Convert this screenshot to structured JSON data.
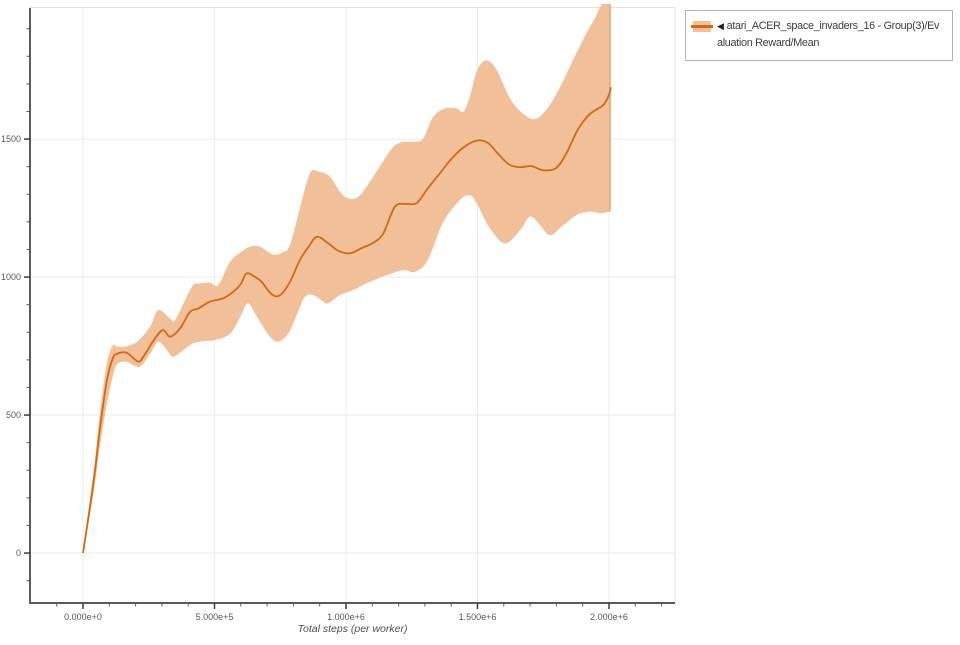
{
  "legend": {
    "collapse_icon": "◀",
    "label": "atari_ACER_space_invaders_16 - Group(3)/Evaluation Reward/Mean"
  },
  "colors": {
    "line": "#d56a0d",
    "band": "#f1bf98",
    "band_edge": "#e5a16b",
    "grid": "#ebebeb",
    "axis": "#5a5a5a",
    "tick_label": "#595959",
    "border": "#e0e0e0"
  },
  "chart_data": {
    "type": "line",
    "title": "",
    "xlabel": "Total steps (per worker)",
    "ylabel": "",
    "xlim": [
      -201500,
      2251000
    ],
    "ylim": [
      -181,
      1975
    ],
    "grid": "major",
    "legend_position": "top-right",
    "x_ticks": {
      "major_values": [
        0,
        500000,
        1000000,
        1500000,
        2000000
      ],
      "major_labels": [
        "0.000e+0",
        "5.000e+5",
        "1.000e+6",
        "1.500e+6",
        "2.000e+6"
      ],
      "minor_step": 100000,
      "minor_range": [
        -100000,
        2200000
      ]
    },
    "y_ticks": {
      "major_values": [
        0,
        500,
        1000,
        1500
      ],
      "major_labels": [
        "0",
        "500",
        "1000",
        "1500"
      ],
      "minor_step": 100,
      "minor_range": [
        -100,
        1900
      ]
    },
    "series": [
      {
        "name": "atari_ACER_space_invaders_16 - Group(3)/Evaluation Reward/Mean",
        "band_is": "min-max over 3 runs",
        "points_mean": [
          [
            0,
            0
          ],
          [
            27000,
            170
          ],
          [
            46000,
            300
          ],
          [
            65000,
            455
          ],
          [
            91000,
            627
          ],
          [
            113000,
            705
          ],
          [
            130000,
            722
          ],
          [
            166000,
            726
          ],
          [
            209000,
            694
          ],
          [
            230000,
            712
          ],
          [
            274000,
            778
          ],
          [
            305000,
            808
          ],
          [
            331000,
            784
          ],
          [
            369000,
            814
          ],
          [
            407000,
            874
          ],
          [
            438000,
            886
          ],
          [
            483000,
            911
          ],
          [
            533000,
            923
          ],
          [
            573000,
            948
          ],
          [
            600000,
            975
          ],
          [
            622000,
            1013
          ],
          [
            655000,
            1000
          ],
          [
            679000,
            983
          ],
          [
            717000,
            938
          ],
          [
            749000,
            934
          ],
          [
            787000,
            983
          ],
          [
            825000,
            1062
          ],
          [
            858000,
            1110
          ],
          [
            890000,
            1146
          ],
          [
            933000,
            1122
          ],
          [
            971000,
            1095
          ],
          [
            1015000,
            1086
          ],
          [
            1060000,
            1105
          ],
          [
            1105000,
            1125
          ],
          [
            1142000,
            1158
          ],
          [
            1186000,
            1255
          ],
          [
            1230000,
            1265
          ],
          [
            1269000,
            1268
          ],
          [
            1310000,
            1320
          ],
          [
            1357000,
            1376
          ],
          [
            1408000,
            1436
          ],
          [
            1459000,
            1478
          ],
          [
            1500000,
            1495
          ],
          [
            1540000,
            1486
          ],
          [
            1580000,
            1445
          ],
          [
            1620000,
            1408
          ],
          [
            1662000,
            1398
          ],
          [
            1705000,
            1402
          ],
          [
            1750000,
            1387
          ],
          [
            1800000,
            1396
          ],
          [
            1840000,
            1452
          ],
          [
            1880000,
            1532
          ],
          [
            1920000,
            1584
          ],
          [
            1950000,
            1606
          ],
          [
            1978000,
            1623
          ],
          [
            1997000,
            1653
          ],
          [
            2008000,
            1688
          ]
        ],
        "points_band_low": [
          [
            0,
            0
          ],
          [
            27000,
            140
          ],
          [
            46000,
            258
          ],
          [
            65000,
            392
          ],
          [
            91000,
            540
          ],
          [
            113000,
            640
          ],
          [
            130000,
            685
          ],
          [
            166000,
            693
          ],
          [
            215000,
            675
          ],
          [
            255000,
            722
          ],
          [
            286000,
            766
          ],
          [
            320000,
            735
          ],
          [
            343000,
            711
          ],
          [
            380000,
            735
          ],
          [
            419000,
            760
          ],
          [
            460000,
            768
          ],
          [
            502000,
            772
          ],
          [
            560000,
            795
          ],
          [
            600000,
            860
          ],
          [
            628000,
            905
          ],
          [
            665000,
            850
          ],
          [
            711000,
            784
          ],
          [
            742000,
            766
          ],
          [
            781000,
            796
          ],
          [
            820000,
            880
          ],
          [
            844000,
            929
          ],
          [
            876000,
            935
          ],
          [
            914000,
            911
          ],
          [
            933000,
            905
          ],
          [
            977000,
            935
          ],
          [
            1028000,
            953
          ],
          [
            1091000,
            983
          ],
          [
            1155000,
            1007
          ],
          [
            1218000,
            1025
          ],
          [
            1262000,
            1019
          ],
          [
            1310000,
            1060
          ],
          [
            1370000,
            1200
          ],
          [
            1433000,
            1279
          ],
          [
            1471000,
            1297
          ],
          [
            1497000,
            1267
          ],
          [
            1548000,
            1176
          ],
          [
            1605000,
            1122
          ],
          [
            1662000,
            1170
          ],
          [
            1700000,
            1219
          ],
          [
            1738000,
            1188
          ],
          [
            1776000,
            1152
          ],
          [
            1826000,
            1188
          ],
          [
            1877000,
            1225
          ],
          [
            1928000,
            1237
          ],
          [
            1966000,
            1231
          ],
          [
            2002000,
            1237
          ]
        ],
        "points_band_high": [
          [
            0,
            0
          ],
          [
            27000,
            200
          ],
          [
            46000,
            342
          ],
          [
            65000,
            512
          ],
          [
            91000,
            688
          ],
          [
            113000,
            752
          ],
          [
            130000,
            748
          ],
          [
            166000,
            750
          ],
          [
            209000,
            768
          ],
          [
            255000,
            820
          ],
          [
            286000,
            880
          ],
          [
            331000,
            850
          ],
          [
            350000,
            844
          ],
          [
            390000,
            920
          ],
          [
            419000,
            971
          ],
          [
            445000,
            977
          ],
          [
            483000,
            980
          ],
          [
            514000,
            971
          ],
          [
            559000,
            1055
          ],
          [
            600000,
            1090
          ],
          [
            635000,
            1110
          ],
          [
            673000,
            1110
          ],
          [
            722000,
            1082
          ],
          [
            760000,
            1090
          ],
          [
            787000,
            1116
          ],
          [
            825000,
            1250
          ],
          [
            863000,
            1376
          ],
          [
            895000,
            1382
          ],
          [
            939000,
            1364
          ],
          [
            977000,
            1309
          ],
          [
            1009000,
            1285
          ],
          [
            1047000,
            1291
          ],
          [
            1091000,
            1345
          ],
          [
            1136000,
            1412
          ],
          [
            1180000,
            1472
          ],
          [
            1218000,
            1490
          ],
          [
            1262000,
            1490
          ],
          [
            1294000,
            1502
          ],
          [
            1332000,
            1581
          ],
          [
            1376000,
            1611
          ],
          [
            1421000,
            1611
          ],
          [
            1446000,
            1599
          ],
          [
            1470000,
            1650
          ],
          [
            1499000,
            1750
          ],
          [
            1535000,
            1785
          ],
          [
            1573000,
            1750
          ],
          [
            1624000,
            1647
          ],
          [
            1672000,
            1593
          ],
          [
            1717000,
            1572
          ],
          [
            1761000,
            1605
          ],
          [
            1812000,
            1684
          ],
          [
            1863000,
            1786
          ],
          [
            1914000,
            1883
          ],
          [
            1950000,
            1945
          ],
          [
            1980000,
            2010
          ],
          [
            2002000,
            2060
          ]
        ]
      }
    ]
  }
}
